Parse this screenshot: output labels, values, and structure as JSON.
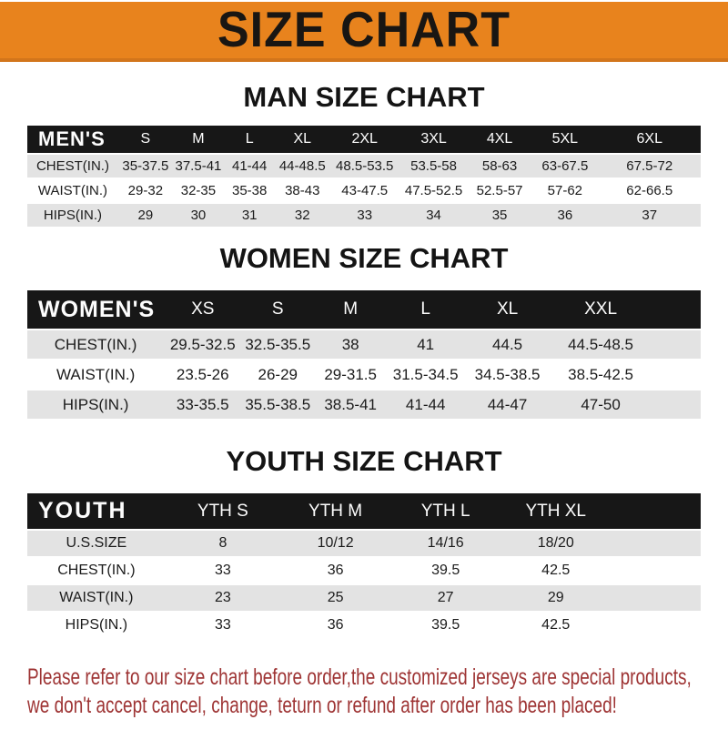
{
  "banner": {
    "title": "SIZE CHART",
    "bg_color": "#E8831D",
    "text_color": "#191613"
  },
  "colors": {
    "header_bar": "#171717",
    "row_alt": "#E3E3E3"
  },
  "sections": [
    {
      "key": "men",
      "heading": "MAN SIZE CHART",
      "header_label": "MEN'S",
      "columns": [
        "S",
        "M",
        "L",
        "XL",
        "2XL",
        "3XL",
        "4XL",
        "5XL",
        "6XL"
      ],
      "rows": [
        {
          "label": "CHEST(IN.)",
          "values": [
            "35-37.5",
            "37.5-41",
            "41-44",
            "44-48.5",
            "48.5-53.5",
            "53.5-58",
            "58-63",
            "63-67.5",
            "67.5-72"
          ]
        },
        {
          "label": "WAIST(IN.)",
          "values": [
            "29-32",
            "32-35",
            "35-38",
            "38-43",
            "43-47.5",
            "47.5-52.5",
            "52.5-57",
            "57-62",
            "62-66.5"
          ]
        },
        {
          "label": "HIPS(IN.)",
          "values": [
            "29",
            "30",
            "31",
            "32",
            "33",
            "34",
            "35",
            "36",
            "37"
          ]
        }
      ]
    },
    {
      "key": "women",
      "heading": "WOMEN SIZE CHART",
      "header_label": "WOMEN'S",
      "columns": [
        "XS",
        "S",
        "M",
        "L",
        "XL",
        "XXL"
      ],
      "rows": [
        {
          "label": "CHEST(IN.)",
          "values": [
            "29.5-32.5",
            "32.5-35.5",
            "38",
            "41",
            "44.5",
            "44.5-48.5"
          ]
        },
        {
          "label": "WAIST(IN.)",
          "values": [
            "23.5-26",
            "26-29",
            "29-31.5",
            "31.5-34.5",
            "34.5-38.5",
            "38.5-42.5"
          ]
        },
        {
          "label": "HIPS(IN.)",
          "values": [
            "33-35.5",
            "35.5-38.5",
            "38.5-41",
            "41-44",
            "44-47",
            "47-50"
          ]
        }
      ]
    },
    {
      "key": "youth",
      "heading": "YOUTH SIZE CHART",
      "header_label": "YOUTH",
      "columns": [
        "YTH S",
        "YTH M",
        "YTH L",
        "YTH XL"
      ],
      "rows": [
        {
          "label": "U.S.SIZE",
          "values": [
            "8",
            "10/12",
            "14/16",
            "18/20"
          ]
        },
        {
          "label": "CHEST(IN.)",
          "values": [
            "33",
            "36",
            "39.5",
            "42.5"
          ]
        },
        {
          "label": "WAIST(IN.)",
          "values": [
            "23",
            "25",
            "27",
            "29"
          ]
        },
        {
          "label": "HIPS(IN.)",
          "values": [
            "33",
            "36",
            "39.5",
            "42.5"
          ]
        }
      ]
    }
  ],
  "footer": {
    "text_color": "#9E3434",
    "lines": [
      "Please refer to our size chart before order,the customized jerseys are special products,",
      "we don't accept cancel, change, teturn or refund after order has been placed!"
    ]
  }
}
